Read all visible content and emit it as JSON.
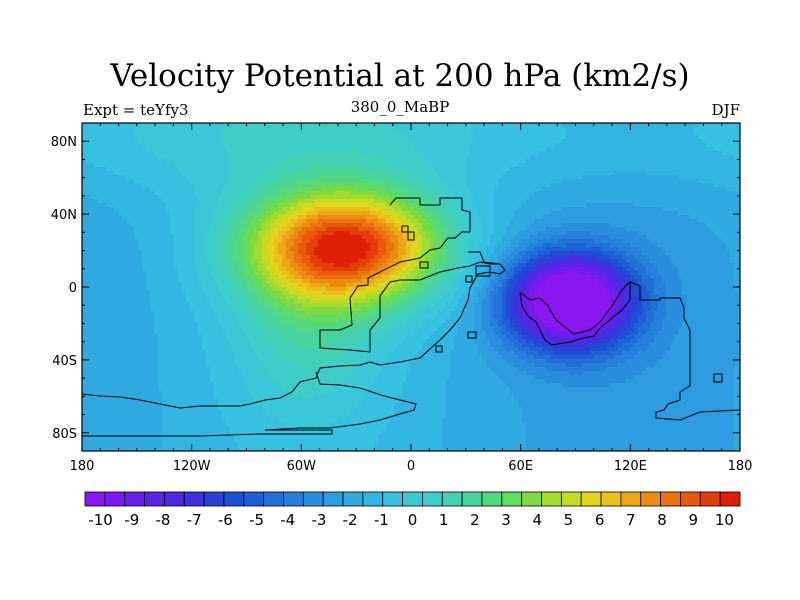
{
  "chart_data": {
    "type": "filled-contour-map",
    "title": "Velocity Potential at 200 hPa (km2/s)",
    "subtitle_left": "Expt = teYfy3",
    "subtitle_center": "380_0_MaBP",
    "subtitle_right": "DJF",
    "x_range": [
      -180,
      180
    ],
    "y_range": [
      -90,
      90
    ],
    "x_ticks": [
      {
        "value": -180,
        "label": "180"
      },
      {
        "value": -120,
        "label": "120W"
      },
      {
        "value": -60,
        "label": "60W"
      },
      {
        "value": 0,
        "label": "0"
      },
      {
        "value": 60,
        "label": "60E"
      },
      {
        "value": 120,
        "label": "120E"
      },
      {
        "value": 180,
        "label": "180"
      }
    ],
    "y_ticks": [
      {
        "value": 80,
        "label": "80N"
      },
      {
        "value": 40,
        "label": "40N"
      },
      {
        "value": 0,
        "label": "0"
      },
      {
        "value": -40,
        "label": "40S"
      },
      {
        "value": -80,
        "label": "80S"
      }
    ],
    "field_centers": [
      {
        "name": "positive-maximum",
        "lon": -35,
        "lat": 22,
        "value": 10
      },
      {
        "name": "negative-minimum",
        "lon": 87,
        "lat": -8,
        "value": -10
      }
    ],
    "colorbar": {
      "min": -10.5,
      "max": 10.5,
      "step": 0.5,
      "labels": [
        "-10",
        "-9",
        "-8",
        "-7",
        "-6",
        "-5",
        "-4",
        "-3",
        "-2",
        "-1",
        "0",
        "1",
        "2",
        "3",
        "4",
        "5",
        "6",
        "7",
        "8",
        "9",
        "10"
      ],
      "label_values": [
        -10,
        -9,
        -8,
        -7,
        -6,
        -5,
        -4,
        -3,
        -2,
        -1,
        0,
        1,
        2,
        3,
        4,
        5,
        6,
        7,
        8,
        9,
        10
      ],
      "colors": [
        "#8a16f2",
        "#7a19ef",
        "#6b1deb",
        "#5c22e8",
        "#4d29e3",
        "#3d33dd",
        "#2a40d8",
        "#1d4fd5",
        "#1e5fd6",
        "#2170d8",
        "#2580db",
        "#2a8ede",
        "#2e9ce0",
        "#31a9e1",
        "#33b5e2",
        "#36c0e1",
        "#3ac8d8",
        "#3ecdc9",
        "#44d0b5",
        "#4ad49b",
        "#53d77f",
        "#63da60",
        "#7fdb3f",
        "#a3dc2e",
        "#c6dc24",
        "#e1d51e",
        "#ecc01a",
        "#eda716",
        "#ec8d12",
        "#ea730e",
        "#e8590b",
        "#e43e08",
        "#df1f06"
      ]
    }
  }
}
